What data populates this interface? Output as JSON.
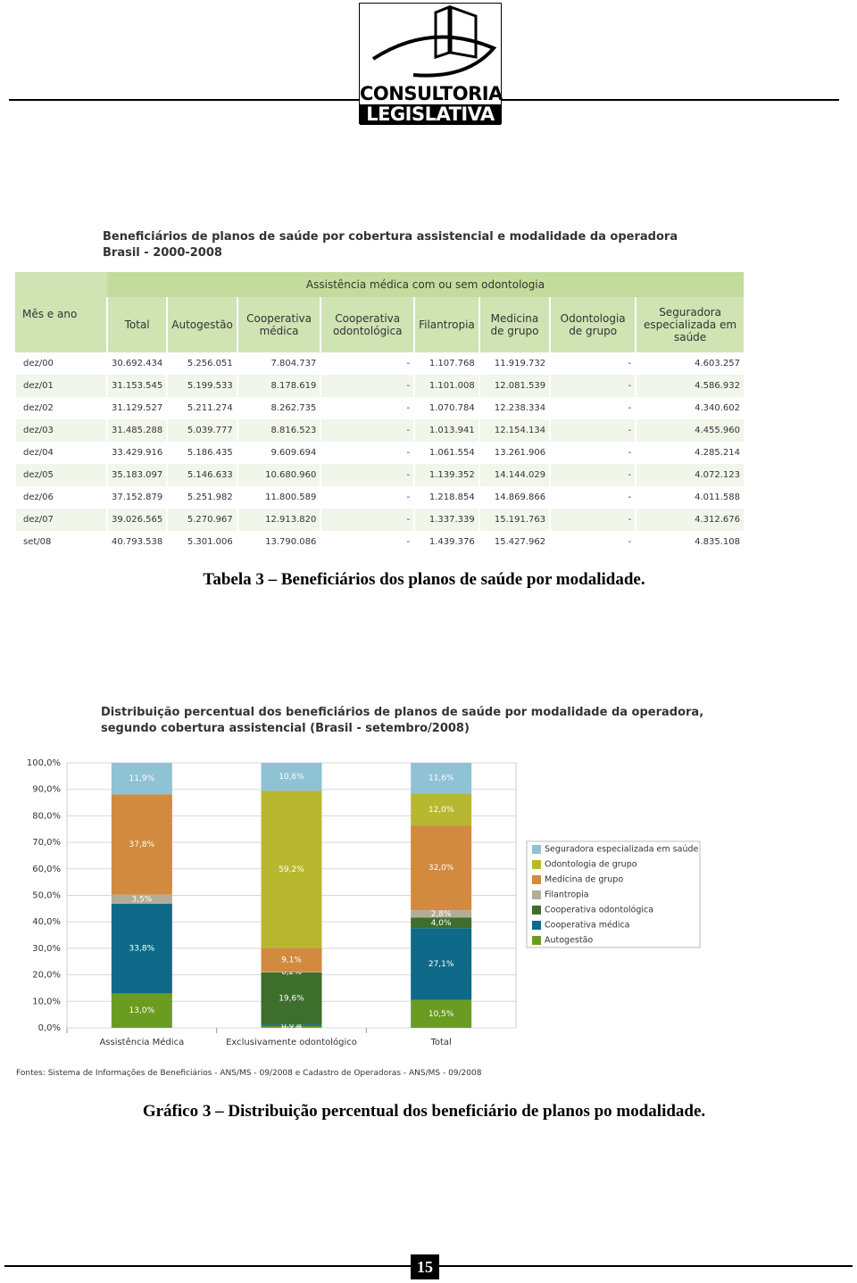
{
  "header": {
    "logo_lines": [
      "CONSULTORIA",
      "LEGISLATIVA"
    ]
  },
  "table": {
    "title": "Beneficiários de planos de saúde por cobertura assistencial e modalidade da operadora",
    "subtitle": "Brasil - 2000-2008",
    "row_header": "Mês e ano",
    "group_header": "Assistência médica com ou sem odontologia",
    "columns": [
      "Total",
      "Autogestão",
      "Cooperativa médica",
      "Cooperativa odontológica",
      "Filantropia",
      "Medicina de grupo",
      "Odontologia de grupo",
      "Seguradora especializada em saúde"
    ],
    "rows": [
      [
        "dez/00",
        "30.692.434",
        "5.256.051",
        "7.804.737",
        "-",
        "1.107.768",
        "11.919.732",
        "-",
        "4.603.257"
      ],
      [
        "dez/01",
        "31.153.545",
        "5.199.533",
        "8.178.619",
        "-",
        "1.101.008",
        "12.081.539",
        "-",
        "4.586.932"
      ],
      [
        "dez/02",
        "31.129.527",
        "5.211.274",
        "8.262.735",
        "-",
        "1.070.784",
        "12.238.334",
        "-",
        "4.340.602"
      ],
      [
        "dez/03",
        "31.485.288",
        "5.039.777",
        "8.816.523",
        "-",
        "1.013.941",
        "12.154.134",
        "-",
        "4.455.960"
      ],
      [
        "dez/04",
        "33.429.916",
        "5.186.435",
        "9.609.694",
        "-",
        "1.061.554",
        "13.261.906",
        "-",
        "4.285.214"
      ],
      [
        "dez/05",
        "35.183.097",
        "5.146.633",
        "10.680.960",
        "-",
        "1.139.352",
        "14.144.029",
        "-",
        "4.072.123"
      ],
      [
        "dez/06",
        "37.152.879",
        "5.251.982",
        "11.800.589",
        "-",
        "1.218.854",
        "14.869.866",
        "-",
        "4.011.588"
      ],
      [
        "dez/07",
        "39.026.565",
        "5.270.967",
        "12.913.820",
        "-",
        "1.337.339",
        "15.191.763",
        "-",
        "4.312.676"
      ],
      [
        "set/08",
        "40.793.538",
        "5.301.006",
        "13.790.086",
        "-",
        "1.439.376",
        "15.427.962",
        "-",
        "4.835.108"
      ]
    ]
  },
  "table_caption": "Tabela 3 – Beneficiários dos planos de saúde por modalidade.",
  "chart_data": {
    "type": "stacked_bar",
    "title": "Distribuição percentual dos beneficiários de planos de saúde por modalidade da operadora, segundo cobertura assistencial (Brasil - setembro/2008)",
    "categories": [
      "Assistência Médica",
      "Exclusivamente odontológico",
      "Total"
    ],
    "series": [
      {
        "name": "Autogestão",
        "color": "#6b9c22",
        "values": [
          13.0,
          0.7,
          10.5
        ],
        "value_labels": [
          "13,0%",
          "0,7%",
          "10,5%"
        ]
      },
      {
        "name": "Cooperativa médica",
        "color": "#0e6a88",
        "values": [
          33.8,
          0.6,
          27.1
        ],
        "value_labels": [
          "33,8%",
          "0,6%",
          "27,1%"
        ]
      },
      {
        "name": "Cooperativa odontológica",
        "color": "#3e6e2c",
        "values": [
          null,
          19.6,
          4.0
        ],
        "value_labels": [
          null,
          "19,6%",
          "4,0%"
        ]
      },
      {
        "name": "Filantropia",
        "color": "#b3ad98",
        "values": [
          3.5,
          0.2,
          2.8
        ],
        "value_labels": [
          "3,5%",
          "0,2%",
          "2,8%"
        ]
      },
      {
        "name": "Medicina de grupo",
        "color": "#d18a3e",
        "values": [
          37.8,
          9.1,
          32.0
        ],
        "value_labels": [
          "37,8%",
          "9,1%",
          "32,0%"
        ]
      },
      {
        "name": "Odontologia de grupo",
        "color": "#b8b830",
        "values": [
          null,
          59.2,
          12.0
        ],
        "value_labels": [
          null,
          "59,2%",
          "12,0%"
        ]
      },
      {
        "name": "Seguradora especializada em saúde",
        "color": "#8fc2d5",
        "values": [
          11.9,
          10.6,
          11.6
        ],
        "value_labels": [
          "11,9%",
          "10,6%",
          "11,6%"
        ]
      }
    ],
    "ylim": [
      0,
      100
    ],
    "yticks": [
      {
        "value": 0,
        "label": "0,0%"
      },
      {
        "value": 10,
        "label": "10,0%"
      },
      {
        "value": 20,
        "label": "20,0%"
      },
      {
        "value": 30,
        "label": "30,0%"
      },
      {
        "value": 40,
        "label": "40,0%"
      },
      {
        "value": 50,
        "label": "50,0%"
      },
      {
        "value": 60,
        "label": "60,0%"
      },
      {
        "value": 70,
        "label": "70,0%"
      },
      {
        "value": 80,
        "label": "80,0%"
      },
      {
        "value": 90,
        "label": "90,0%"
      },
      {
        "value": 100,
        "label": "100,0%"
      }
    ],
    "grid": true,
    "legend": "right",
    "source": "Fontes: Sistema de Informações de Beneficiários - ANS/MS - 09/2008 e Cadastro de Operadoras - ANS/MS - 09/2008"
  },
  "chart_caption": "Gráfico 3 – Distribuição percentual dos beneficiário de planos po modalidade.",
  "page_number": 15
}
